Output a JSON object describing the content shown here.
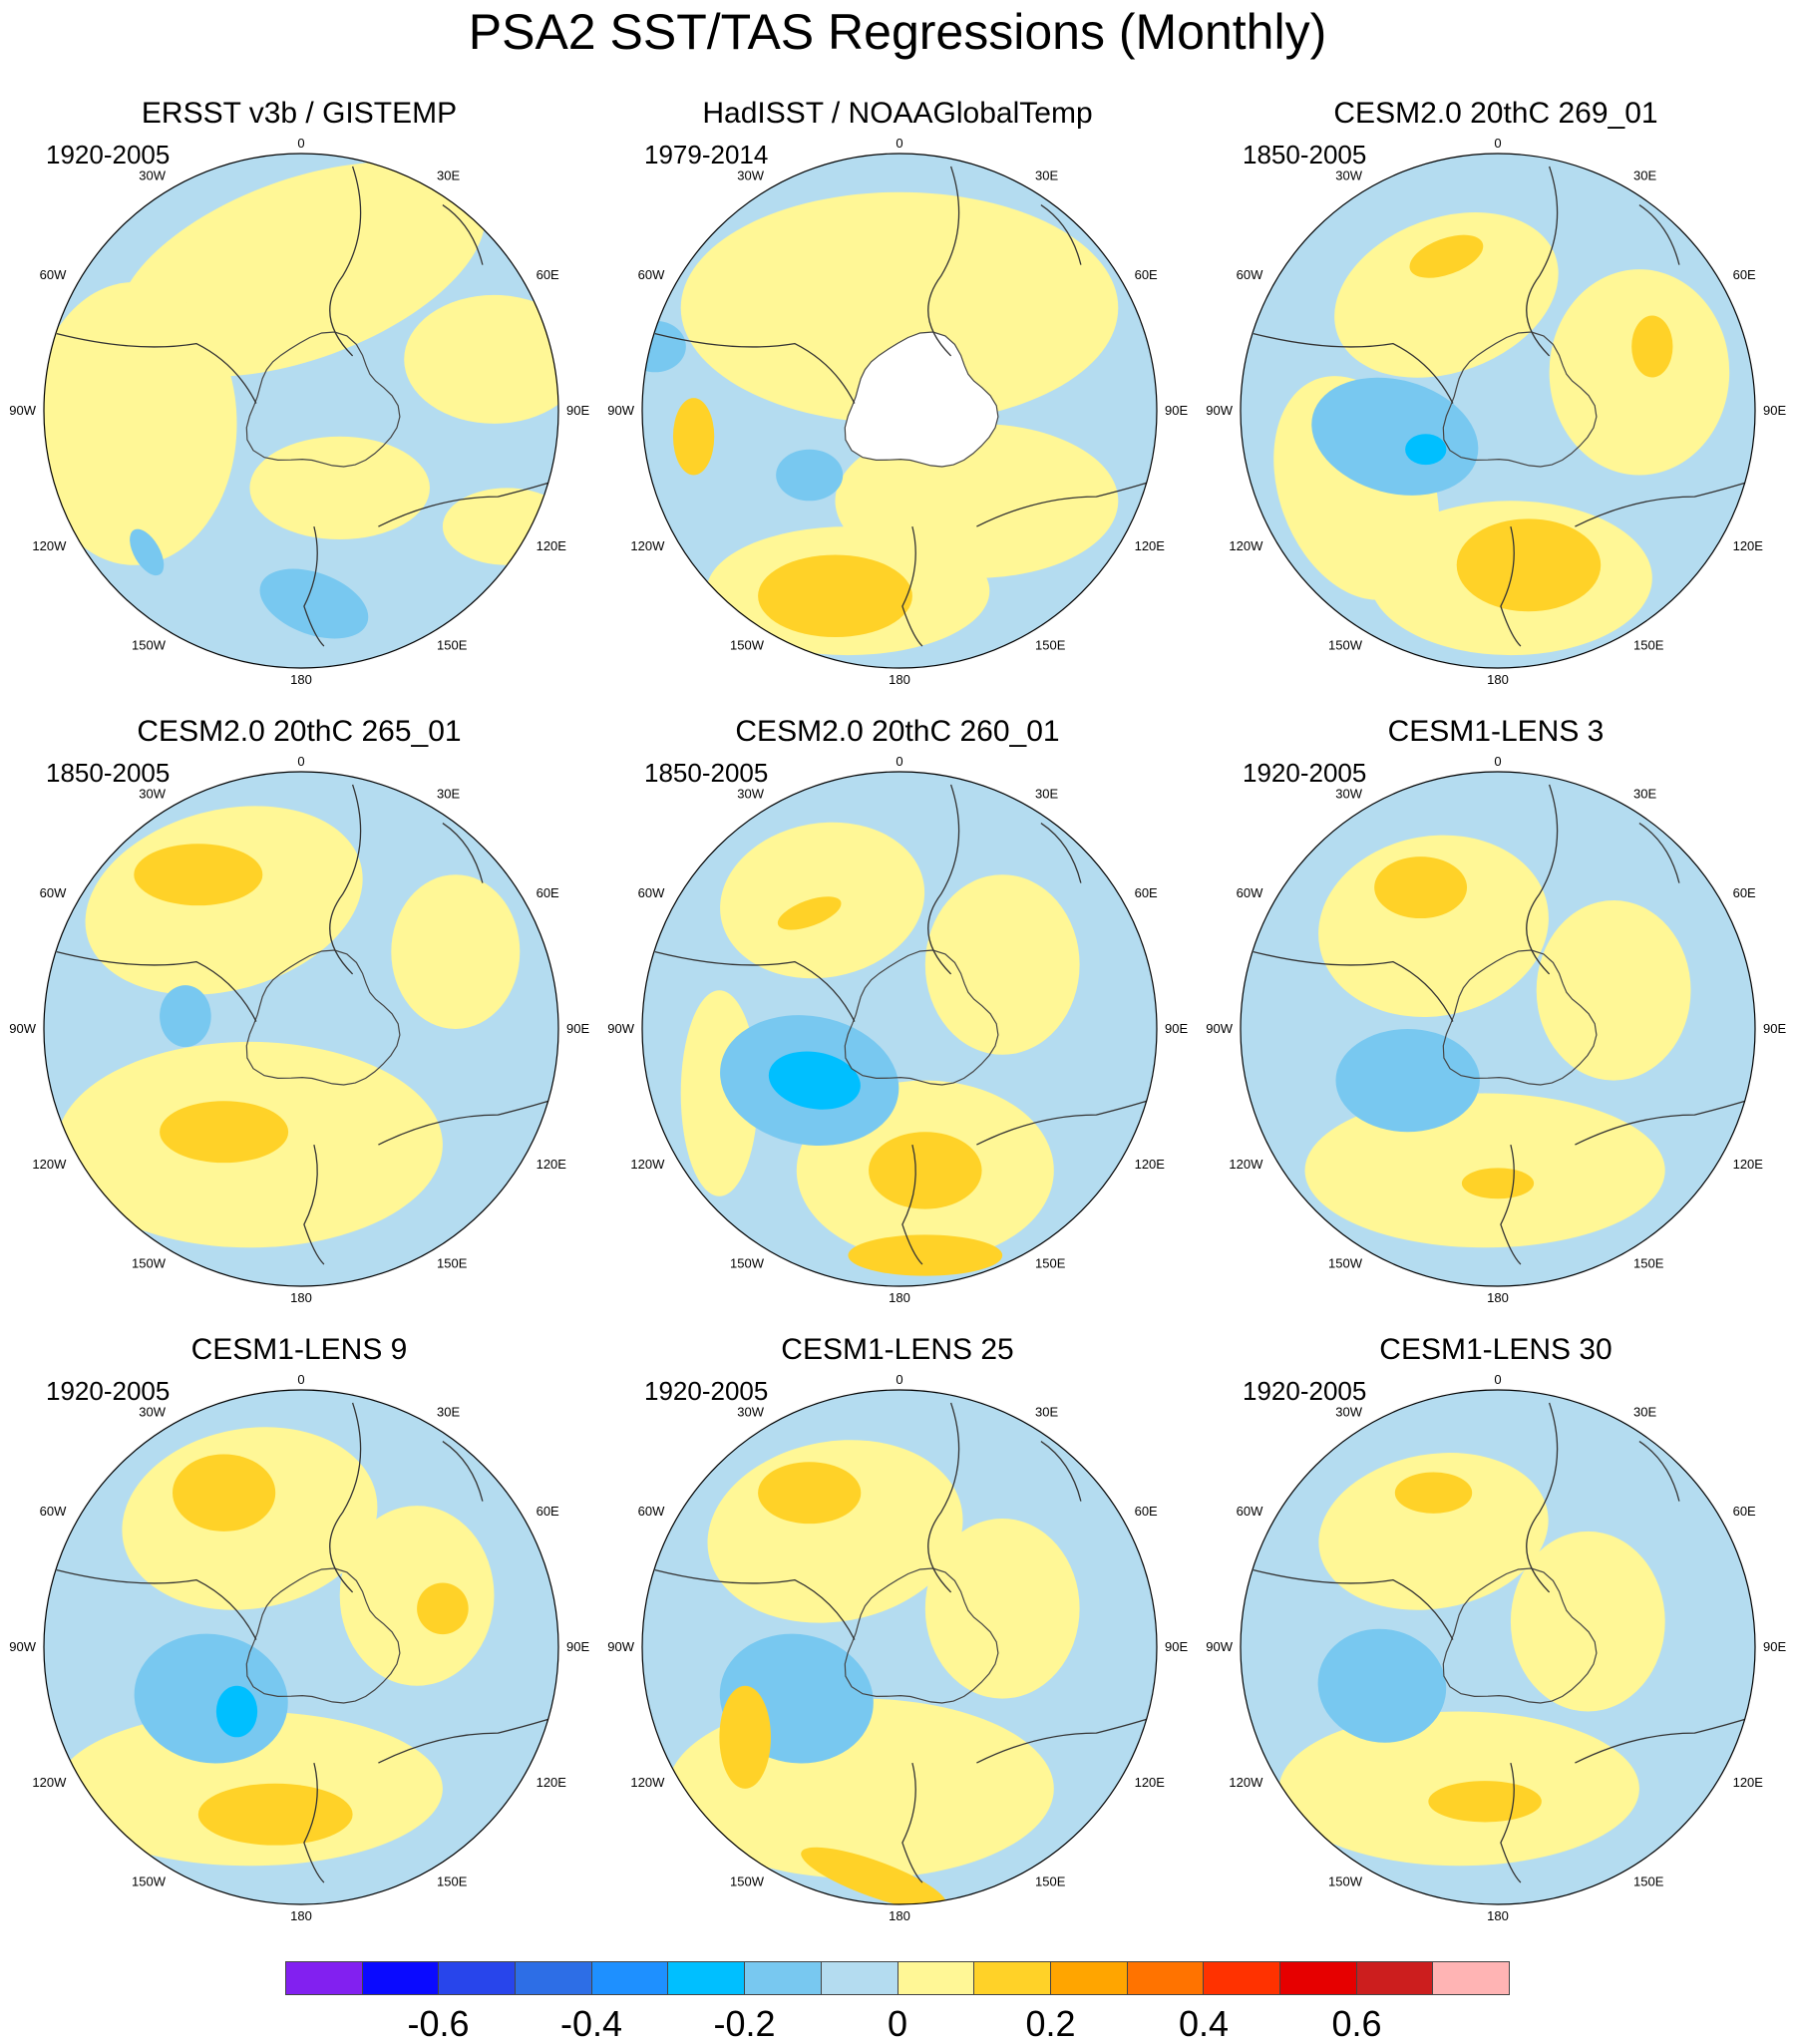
{
  "title": "PSA2 SST/TAS Regressions (Monthly)",
  "longitude_labels": [
    "0",
    "30E",
    "60E",
    "90E",
    "120E",
    "150E",
    "180",
    "150W",
    "120W",
    "90W",
    "60W",
    "30W"
  ],
  "panels": [
    {
      "title": "ERSST v3b / GISTEMP",
      "period": "1920-2005",
      "land_masked": false
    },
    {
      "title": "HadISST / NOAAGlobalTemp",
      "period": "1979-2014",
      "land_masked": true
    },
    {
      "title": "CESM2.0 20thC 269_01",
      "period": "1850-2005",
      "land_masked": false
    },
    {
      "title": "CESM2.0 20thC 265_01",
      "period": "1850-2005",
      "land_masked": false
    },
    {
      "title": "CESM2.0 20thC 260_01",
      "period": "1850-2005",
      "land_masked": false
    },
    {
      "title": "CESM1-LENS 3",
      "period": "1920-2005",
      "land_masked": false
    },
    {
      "title": "CESM1-LENS 9",
      "period": "1920-2005",
      "land_masked": false
    },
    {
      "title": "CESM1-LENS 25",
      "period": "1920-2005",
      "land_masked": false
    },
    {
      "title": "CESM1-LENS 30",
      "period": "1920-2005",
      "land_masked": false
    }
  ],
  "colorbar": {
    "colors": [
      "#8220f0",
      "#0a0aff",
      "#2845eb",
      "#2d6ee6",
      "#1e90ff",
      "#00bfff",
      "#78c8f0",
      "#b4dcf0",
      "#fff796",
      "#ffd228",
      "#ffa500",
      "#ff7300",
      "#ff3200",
      "#e60000",
      "#cc1e1e",
      "#ffb4b4"
    ],
    "levels": [
      -0.7,
      -0.6,
      -0.5,
      -0.4,
      -0.3,
      -0.2,
      -0.1,
      0,
      0.1,
      0.2,
      0.3,
      0.4,
      0.5,
      0.6,
      0.7
    ],
    "labels": [
      "-0.6",
      "-0.4",
      "-0.2",
      "0",
      "0.2",
      "0.4",
      "0.6"
    ]
  },
  "shading_colors": {
    "ocean_neg_weak": "#b4dcf0",
    "ocean_pos_weak": "#fff796",
    "neg_moderate": "#78c8f0",
    "neg_strong": "#00bfff",
    "pos_moderate": "#ffd228",
    "pos_strong": "#ffa500",
    "masked": "#ffffff",
    "coastline": "#000000"
  }
}
